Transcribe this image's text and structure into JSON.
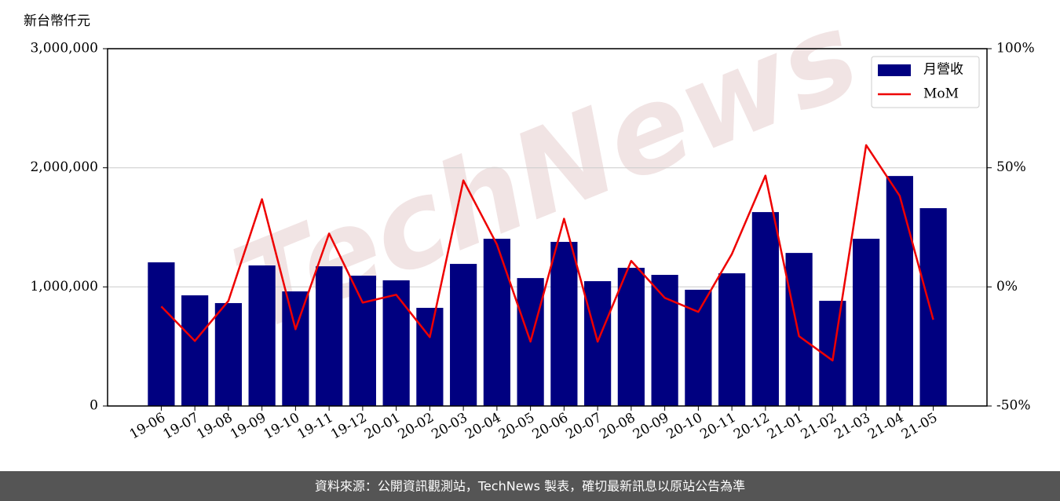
{
  "chart_data": {
    "type": "bar",
    "y_label": "新台幣仟元",
    "watermark": "TechNews",
    "footer": "資料來源：公開資訊觀測站，TechNews 製表，確切最新訊息以原站公告為準",
    "categories": [
      "19-06",
      "19-07",
      "19-08",
      "19-09",
      "19-10",
      "19-11",
      "19-12",
      "20-01",
      "20-02",
      "20-03",
      "20-04",
      "20-05",
      "20-06",
      "20-07",
      "20-08",
      "20-09",
      "20-10",
      "20-11",
      "20-12",
      "21-01",
      "21-02",
      "21-03",
      "21-04",
      "21-05"
    ],
    "series": [
      {
        "name": "月營收",
        "type": "bar",
        "color": "#000080",
        "values": [
          1206000,
          929000,
          864000,
          1180000,
          962000,
          1173000,
          1094000,
          1055000,
          824000,
          1193000,
          1404000,
          1074000,
          1378000,
          1048000,
          1160000,
          1101000,
          976000,
          1114000,
          1628000,
          1285000,
          883000,
          1404000,
          1931000,
          1661000
        ]
      },
      {
        "name": "MoM",
        "type": "line",
        "color": "#ee0000",
        "axis": "y2",
        "values": [
          -8.2,
          -22.7,
          -5.9,
          36.8,
          -17.8,
          22.4,
          -6.6,
          -3.3,
          -21.1,
          44.7,
          17.8,
          -23.0,
          28.6,
          -23.0,
          10.9,
          -4.6,
          -10.5,
          13.8,
          46.7,
          -20.7,
          -30.9,
          59.5,
          38.2,
          -13.8
        ]
      }
    ],
    "ylim": [
      0,
      3000000
    ],
    "yticks": [
      0,
      {
        "value": 1000000,
        "label": "1,000,000"
      },
      {
        "value": 2000000,
        "label": "2,000,000"
      },
      {
        "value": 3000000,
        "label": "3,000,000"
      }
    ],
    "y2lim": [
      -50,
      100
    ],
    "y2ticks": [
      {
        "value": -50,
        "label": "-50%"
      },
      {
        "value": 0,
        "label": "0%"
      },
      {
        "value": 50,
        "label": "50%"
      },
      {
        "value": 100,
        "label": "100%"
      }
    ],
    "grid": true,
    "legend": "upper right"
  }
}
